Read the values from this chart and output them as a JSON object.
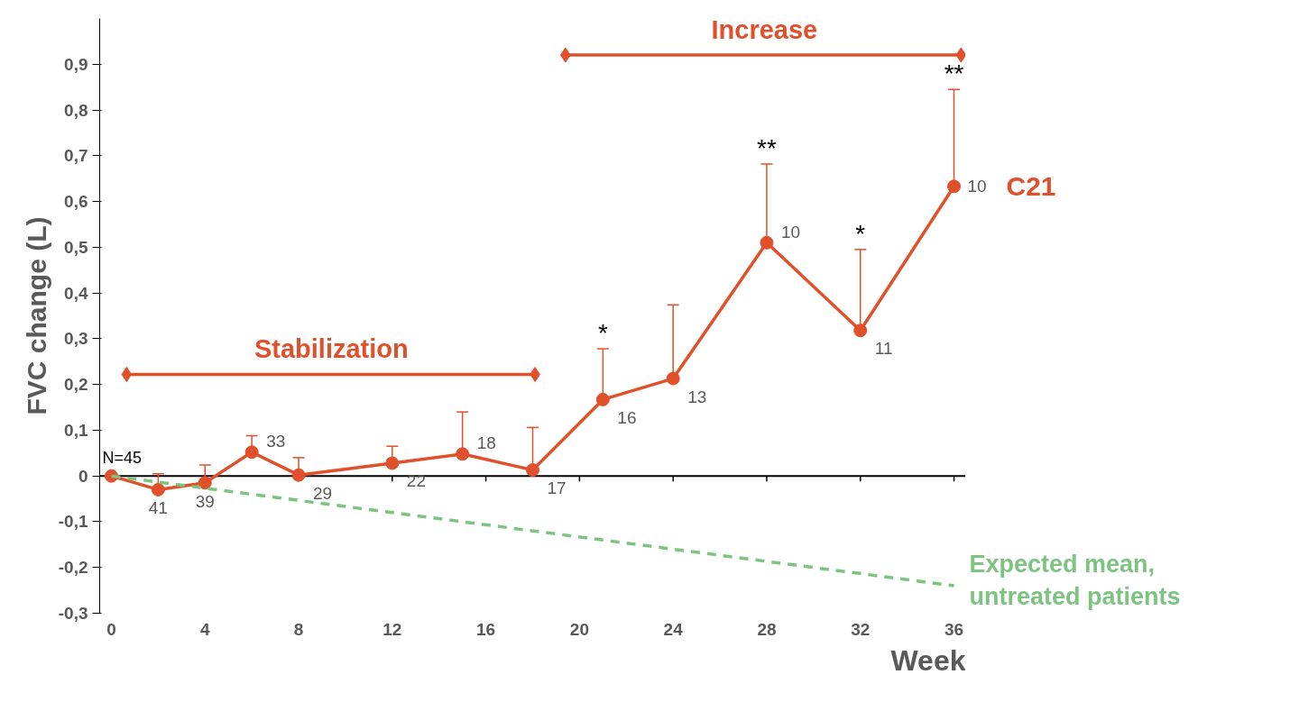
{
  "chart_data": {
    "type": "line",
    "xlabel": "Week",
    "ylabel": "FVC change (L)",
    "xlim": [
      -0.5,
      36.5
    ],
    "ylim": [
      -0.3,
      1.0
    ],
    "xticks": [
      0,
      4,
      8,
      12,
      16,
      20,
      24,
      28,
      32,
      36
    ],
    "yticks": [
      {
        "value": -0.3,
        "label": "-0,3"
      },
      {
        "value": -0.2,
        "label": "-0,2"
      },
      {
        "value": -0.1,
        "label": "-0,1"
      },
      0,
      {
        "value": 0.1,
        "label": "0,1"
      },
      {
        "value": 0.2,
        "label": "0,2"
      },
      {
        "value": 0.3,
        "label": "0,3"
      },
      {
        "value": 0.4,
        "label": "0,4"
      },
      {
        "value": 0.5,
        "label": "0,5"
      },
      {
        "value": 0.6,
        "label": "0,6"
      },
      {
        "value": 0.7,
        "label": "0,7"
      },
      {
        "value": 0.8,
        "label": "0,8"
      },
      {
        "value": 0.9,
        "label": "0,9"
      }
    ],
    "grid": false,
    "marker": "circle",
    "ref_lines": [
      {
        "axis": "y",
        "value": 0,
        "color": "#000000"
      }
    ],
    "series": [
      {
        "name": "C21",
        "color": "#e0502a",
        "x": [
          0,
          2,
          4,
          6,
          8,
          12,
          15,
          18,
          21,
          24,
          28,
          32,
          36
        ],
        "values": [
          0,
          -0.03,
          -0.015,
          0.052,
          0.002,
          0.028,
          0.048,
          0.013,
          0.167,
          0.213,
          0.51,
          0.318,
          0.633
        ],
        "errors": [
          null,
          [
            -0.03,
            0.005
          ],
          [
            -0.015,
            0.024
          ],
          [
            0.052,
            0.088
          ],
          [
            0.002,
            0.04
          ],
          [
            0.028,
            0.065
          ],
          [
            0.048,
            0.14
          ],
          [
            0.013,
            0.106
          ],
          [
            0.167,
            0.278
          ],
          [
            0.213,
            0.374
          ],
          [
            0.51,
            0.682
          ],
          [
            0.318,
            0.495
          ],
          [
            0.633,
            0.845
          ]
        ]
      },
      {
        "name": "Expected mean, untreated patients",
        "color": "#7cc47f",
        "line_style": "dashed",
        "marker": "none",
        "x": [
          0,
          36
        ],
        "values": [
          0,
          -0.24
        ]
      },
      {
        "color": "#e0502a",
        "marker": "diamond",
        "x": [
          0.65,
          18.1
        ],
        "values": [
          0.222,
          0.222
        ]
      },
      {
        "color": "#e0502a",
        "marker": "diamond",
        "x": [
          19.4,
          36.3
        ],
        "values": [
          0.92,
          0.92
        ]
      }
    ],
    "annotations": [
      {
        "text": "Stabilization",
        "x": 9.4,
        "y": 0.222
      },
      {
        "text": "Increase",
        "x": 27.9,
        "y": 0.92
      },
      {
        "text": "N=45",
        "x": 0,
        "y": 0
      },
      {
        "text": "41",
        "x": 2,
        "y": -0.03
      },
      {
        "text": "39",
        "x": 4,
        "y": -0.015
      },
      {
        "text": "33",
        "x": 6,
        "y": 0.052
      },
      {
        "text": "29",
        "x": 8,
        "y": 0.002
      },
      {
        "text": "22",
        "x": 12,
        "y": 0.028
      },
      {
        "text": "18",
        "x": 15,
        "y": 0.048
      },
      {
        "text": "17",
        "x": 18,
        "y": 0.013
      },
      {
        "text": "16",
        "x": 21,
        "y": 0.167
      },
      {
        "text": "13",
        "x": 24,
        "y": 0.213
      },
      {
        "text": "10",
        "x": 28,
        "y": 0.51
      },
      {
        "text": "11",
        "x": 32,
        "y": 0.318
      },
      {
        "text": "10",
        "x": 36,
        "y": 0.633
      },
      {
        "text": "*",
        "x": 21,
        "y": 0.278
      },
      {
        "text": "**",
        "x": 28,
        "y": 0.682
      },
      {
        "text": "*",
        "x": 32,
        "y": 0.495
      },
      {
        "text": "**",
        "x": 36,
        "y": 0.845
      }
    ]
  }
}
